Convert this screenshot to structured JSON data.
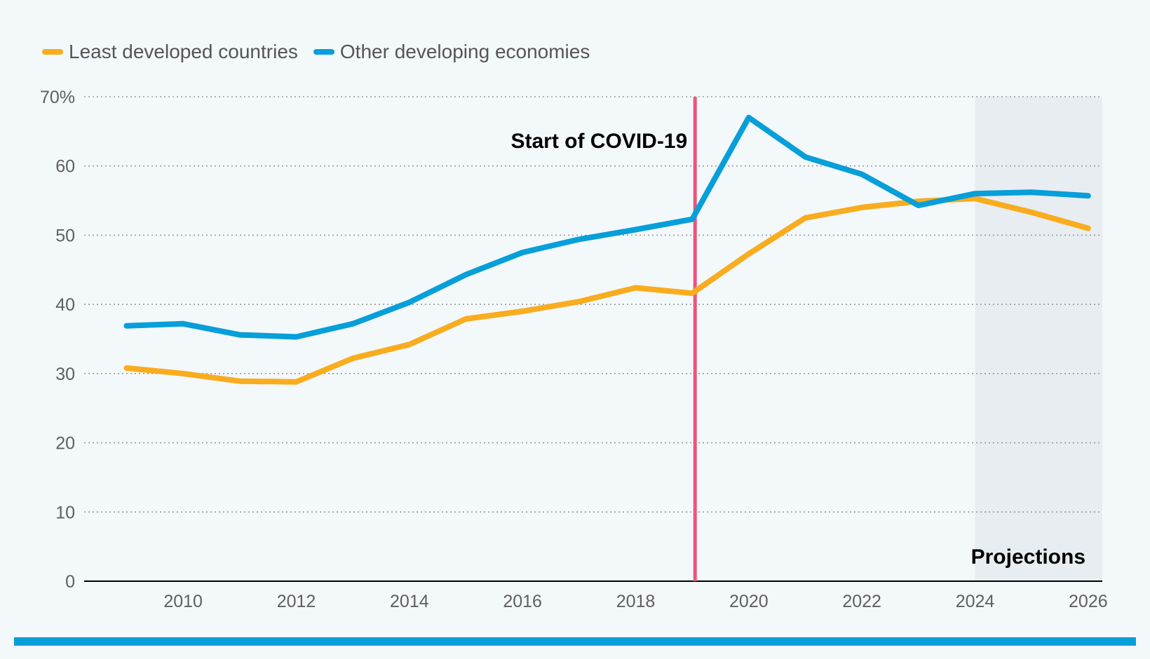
{
  "legend": [
    {
      "name": "Least developed countries",
      "color": "#f9ac1e"
    },
    {
      "name": "Other developing economies",
      "color": "#069fd9"
    }
  ],
  "colors": {
    "background": "#f3f8fb",
    "projection_band": "#e7edf0",
    "covid_line": "#e8567a",
    "grid": "#9a9a9a",
    "axis": "#000000",
    "bottom_bar": "#069fd9"
  },
  "chart_data": {
    "type": "line",
    "title": "",
    "xlabel": "",
    "ylabel": "",
    "x": [
      2009,
      2010,
      2011,
      2012,
      2013,
      2014,
      2015,
      2016,
      2017,
      2018,
      2019,
      2020,
      2021,
      2022,
      2023,
      2024,
      2025,
      2026
    ],
    "xlim": [
      2008.25,
      2026.25
    ],
    "ylim": [
      0,
      70
    ],
    "y_ticks": [
      0,
      10,
      20,
      30,
      40,
      50,
      60,
      70
    ],
    "y_tick_labels": [
      "0",
      "10",
      "20",
      "30",
      "40",
      "50",
      "60",
      "70%"
    ],
    "x_ticks": [
      2010,
      2012,
      2014,
      2016,
      2018,
      2020,
      2022,
      2024,
      2026
    ],
    "x_tick_labels": [
      "2010",
      "2012",
      "2014",
      "2016",
      "2018",
      "2020",
      "2022",
      "2024",
      "2026"
    ],
    "grid": true,
    "legend_position": "top-left",
    "series": [
      {
        "name": "Least developed countries",
        "color": "#f9ac1e",
        "values": [
          30.8,
          30.0,
          28.9,
          28.8,
          32.2,
          34.2,
          37.9,
          39.0,
          40.4,
          42.4,
          41.6,
          47.3,
          52.5,
          54.0,
          54.9,
          55.3,
          53.3,
          51.0
        ]
      },
      {
        "name": "Other developing economies",
        "color": "#069fd9",
        "values": [
          36.9,
          37.2,
          35.6,
          35.3,
          37.2,
          40.3,
          44.3,
          47.5,
          49.4,
          50.8,
          52.3,
          67.0,
          61.3,
          58.8,
          54.3,
          56.0,
          56.2,
          55.7
        ]
      }
    ],
    "annotations": [
      {
        "label": "Start of COVID-19",
        "x": 2019.05,
        "type": "vertical-line"
      },
      {
        "label": "Projections",
        "x_range": [
          2024,
          2026.25
        ],
        "type": "shaded-region"
      }
    ]
  }
}
